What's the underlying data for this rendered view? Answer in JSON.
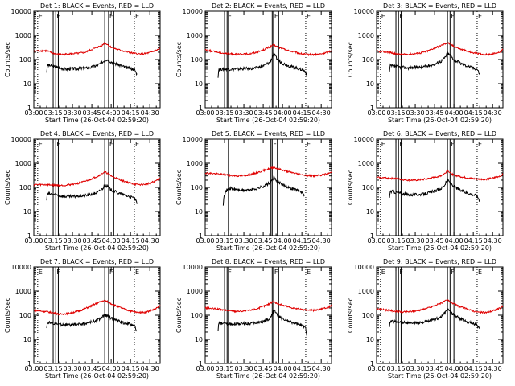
{
  "colors": {
    "events": "#000000",
    "lld": "#e00000",
    "axes": "#000000",
    "background": "#ffffff"
  },
  "shared": {
    "xlabel": "Start Time (26-Oct-04 02:59:20)",
    "ylabel": "Counts/sec",
    "x_ticks": [
      "03:00",
      "03:15",
      "03:30",
      "03:45",
      "04:00",
      "04:15",
      "04:30"
    ],
    "y_ticks": [
      "1",
      "10",
      "100",
      "1000",
      "10000"
    ],
    "y_scale": "log",
    "ylim": [
      1,
      10000
    ],
    "xlim_minutes_from_0300": [
      0,
      98
    ]
  },
  "chart_data": [
    {
      "type": "line",
      "title": "Det 1: BLACK = Events, RED = LLD",
      "markers": [
        {
          "label": "E",
          "x": 3,
          "style": "dotted"
        },
        {
          "label": "F",
          "x": 17,
          "style": "solid"
        },
        {
          "label": "F",
          "x": 58,
          "style": "solid"
        },
        {
          "label": "E",
          "x": 78,
          "style": "dotted"
        }
      ],
      "vlines_solid": [
        15,
        19,
        55,
        62
      ],
      "series": [
        {
          "name": "Events",
          "x": [
            10,
            10.5,
            17,
            20,
            25,
            30,
            35,
            40,
            45,
            50,
            53,
            55,
            57,
            60,
            65,
            70,
            75,
            78,
            80
          ],
          "y": [
            30,
            60,
            48,
            45,
            40,
            42,
            42,
            44,
            48,
            60,
            75,
            95,
            100,
            80,
            62,
            50,
            42,
            40,
            25
          ]
        },
        {
          "name": "LLD",
          "x": [
            0,
            5,
            10,
            15,
            20,
            25,
            30,
            35,
            40,
            45,
            50,
            53,
            55,
            57,
            60,
            65,
            70,
            75,
            80,
            85,
            90,
            95,
            98
          ],
          "y": [
            220,
            230,
            230,
            180,
            160,
            165,
            175,
            180,
            200,
            260,
            330,
            380,
            500,
            420,
            320,
            260,
            220,
            190,
            170,
            170,
            190,
            240,
            280
          ]
        }
      ]
    },
    {
      "type": "line",
      "title": "Det 2: BLACK = Events, RED = LLD",
      "markers": [
        {
          "label": "F",
          "x": 17,
          "style": "solid"
        },
        {
          "label": "F",
          "x": 53,
          "style": "solid"
        },
        {
          "label": "E",
          "x": 78,
          "style": "dotted"
        }
      ],
      "vlines_solid": [
        15,
        18,
        52,
        57
      ],
      "series": [
        {
          "name": "Events",
          "x": [
            10,
            10.5,
            17,
            20,
            25,
            30,
            35,
            40,
            45,
            50,
            52,
            53,
            55,
            57,
            60,
            65,
            70,
            75,
            78,
            79
          ],
          "y": [
            20,
            40,
            40,
            40,
            40,
            42,
            42,
            45,
            55,
            75,
            120,
            180,
            120,
            90,
            70,
            55,
            45,
            38,
            32,
            18
          ]
        },
        {
          "name": "LLD",
          "x": [
            0,
            5,
            10,
            15,
            20,
            25,
            30,
            35,
            40,
            45,
            50,
            53,
            55,
            60,
            65,
            70,
            75,
            80,
            85,
            90,
            95,
            98
          ],
          "y": [
            260,
            220,
            200,
            180,
            170,
            165,
            165,
            175,
            200,
            250,
            330,
            400,
            350,
            280,
            230,
            200,
            170,
            160,
            160,
            170,
            200,
            240
          ]
        }
      ]
    },
    {
      "type": "line",
      "title": "Det 3: BLACK = Events, RED = LLD",
      "markers": [
        {
          "label": "E",
          "x": 3,
          "style": "dotted"
        },
        {
          "label": "F",
          "x": 17,
          "style": "solid"
        },
        {
          "label": "F",
          "x": 57,
          "style": "solid"
        },
        {
          "label": "E",
          "x": 78,
          "style": "dotted"
        }
      ],
      "vlines_solid": [
        15,
        19,
        55,
        60
      ],
      "series": [
        {
          "name": "Events",
          "x": [
            10,
            10.5,
            17,
            20,
            25,
            30,
            35,
            40,
            45,
            50,
            53,
            55,
            57,
            60,
            65,
            70,
            75,
            78,
            80
          ],
          "y": [
            30,
            55,
            50,
            48,
            45,
            48,
            48,
            55,
            65,
            85,
            120,
            180,
            150,
            100,
            70,
            55,
            45,
            40,
            25
          ]
        },
        {
          "name": "LLD",
          "x": [
            0,
            5,
            10,
            15,
            20,
            25,
            30,
            35,
            40,
            45,
            50,
            53,
            55,
            57,
            60,
            65,
            70,
            75,
            80,
            85,
            90,
            95,
            98
          ],
          "y": [
            220,
            210,
            200,
            170,
            160,
            165,
            175,
            190,
            230,
            300,
            380,
            450,
            500,
            440,
            350,
            270,
            220,
            190,
            170,
            160,
            170,
            200,
            260
          ]
        }
      ]
    },
    {
      "type": "line",
      "title": "Det 4: BLACK = Events, RED = LLD",
      "markers": [
        {
          "label": "E",
          "x": 3,
          "style": "dotted"
        },
        {
          "label": "F",
          "x": 17,
          "style": "solid"
        },
        {
          "label": "F",
          "x": 58,
          "style": "solid"
        },
        {
          "label": "E",
          "x": 78,
          "style": "dotted"
        }
      ],
      "vlines_solid": [
        15,
        19,
        55,
        62
      ],
      "series": [
        {
          "name": "Events",
          "x": [
            10,
            10.5,
            17,
            20,
            25,
            30,
            35,
            40,
            45,
            50,
            53,
            55,
            57,
            60,
            65,
            70,
            75,
            78,
            80
          ],
          "y": [
            30,
            55,
            50,
            45,
            42,
            42,
            44,
            46,
            52,
            65,
            85,
            120,
            110,
            80,
            60,
            48,
            40,
            36,
            22
          ]
        },
        {
          "name": "LLD",
          "x": [
            0,
            5,
            10,
            15,
            20,
            25,
            30,
            35,
            40,
            45,
            50,
            53,
            55,
            57,
            60,
            65,
            70,
            75,
            80,
            85,
            90,
            95,
            98
          ],
          "y": [
            130,
            130,
            130,
            125,
            120,
            125,
            135,
            150,
            180,
            230,
            300,
            380,
            430,
            390,
            300,
            230,
            180,
            150,
            130,
            130,
            150,
            190,
            260
          ]
        }
      ]
    },
    {
      "type": "line",
      "title": "Det 5: BLACK = Events, RED = LLD",
      "markers": [
        {
          "label": "F",
          "x": 52,
          "style": "solid"
        },
        {
          "label": "E",
          "x": 78,
          "style": "dotted"
        }
      ],
      "vlines_solid": [
        18,
        51,
        56
      ],
      "series": [
        {
          "name": "Events",
          "x": [
            14,
            14.5,
            17,
            20,
            25,
            30,
            35,
            40,
            45,
            50,
            52,
            53,
            55,
            57,
            60,
            65,
            70,
            75,
            77
          ],
          "y": [
            20,
            50,
            80,
            90,
            80,
            75,
            80,
            90,
            110,
            150,
            200,
            260,
            200,
            160,
            130,
            100,
            80,
            65,
            40
          ]
        },
        {
          "name": "LLD",
          "x": [
            0,
            5,
            10,
            15,
            20,
            25,
            30,
            35,
            40,
            45,
            50,
            53,
            55,
            60,
            65,
            70,
            75,
            80,
            85,
            90,
            95,
            98
          ],
          "y": [
            400,
            380,
            360,
            340,
            310,
            300,
            310,
            340,
            400,
            500,
            600,
            680,
            620,
            520,
            440,
            380,
            340,
            310,
            300,
            320,
            370,
            420
          ]
        }
      ]
    },
    {
      "type": "line",
      "title": "Det 6: BLACK = Events, RED = LLD",
      "markers": [
        {
          "label": "E",
          "x": 3,
          "style": "dotted"
        },
        {
          "label": "F",
          "x": 17,
          "style": "solid"
        },
        {
          "label": "F",
          "x": 57,
          "style": "solid"
        },
        {
          "label": "E",
          "x": 78,
          "style": "dotted"
        }
      ],
      "vlines_solid": [
        15,
        19,
        55,
        60
      ],
      "series": [
        {
          "name": "Events",
          "x": [
            10,
            10.5,
            17,
            20,
            25,
            30,
            35,
            40,
            45,
            50,
            53,
            55,
            57,
            60,
            65,
            70,
            75,
            78,
            80
          ],
          "y": [
            35,
            70,
            60,
            55,
            50,
            50,
            52,
            58,
            70,
            90,
            130,
            200,
            160,
            110,
            75,
            60,
            50,
            45,
            28
          ]
        },
        {
          "name": "LLD",
          "x": [
            0,
            5,
            10,
            15,
            20,
            25,
            30,
            35,
            40,
            45,
            50,
            53,
            55,
            57,
            60,
            65,
            70,
            75,
            80,
            85,
            90,
            95,
            98
          ],
          "y": [
            260,
            250,
            240,
            230,
            210,
            200,
            200,
            210,
            230,
            260,
            310,
            380,
            520,
            400,
            320,
            280,
            250,
            230,
            220,
            220,
            240,
            290,
            340
          ]
        }
      ]
    },
    {
      "type": "line",
      "title": "Det 7: BLACK = Events, RED = LLD",
      "markers": [
        {
          "label": "E",
          "x": 3,
          "style": "dotted"
        },
        {
          "label": "F",
          "x": 17,
          "style": "solid"
        },
        {
          "label": "F",
          "x": 58,
          "style": "solid"
        },
        {
          "label": "E",
          "x": 78,
          "style": "dotted"
        }
      ],
      "vlines_solid": [
        15,
        19,
        55,
        62
      ],
      "series": [
        {
          "name": "Events",
          "x": [
            10,
            10.5,
            17,
            20,
            25,
            30,
            35,
            40,
            45,
            50,
            53,
            55,
            57,
            60,
            65,
            70,
            75,
            78,
            80
          ],
          "y": [
            30,
            50,
            45,
            42,
            40,
            40,
            42,
            45,
            52,
            65,
            85,
            100,
            95,
            75,
            58,
            48,
            42,
            38,
            20
          ]
        },
        {
          "name": "LLD",
          "x": [
            0,
            5,
            10,
            15,
            20,
            25,
            30,
            35,
            40,
            45,
            50,
            53,
            55,
            57,
            60,
            65,
            70,
            75,
            80,
            85,
            90,
            95,
            98
          ],
          "y": [
            160,
            150,
            140,
            125,
            110,
            115,
            130,
            150,
            190,
            250,
            330,
            380,
            400,
            370,
            300,
            230,
            180,
            150,
            130,
            130,
            150,
            190,
            250
          ]
        }
      ]
    },
    {
      "type": "line",
      "title": "Det 8: BLACK = Events, RED = LLD",
      "markers": [
        {
          "label": "F",
          "x": 17,
          "style": "solid"
        },
        {
          "label": "F",
          "x": 53,
          "style": "solid"
        },
        {
          "label": "E",
          "x": 78,
          "style": "dotted"
        }
      ],
      "vlines_solid": [
        15,
        18,
        52,
        57
      ],
      "series": [
        {
          "name": "Events",
          "x": [
            10,
            10.5,
            17,
            20,
            25,
            30,
            35,
            40,
            45,
            50,
            52,
            53,
            55,
            57,
            60,
            65,
            70,
            75,
            78,
            79
          ],
          "y": [
            25,
            45,
            45,
            45,
            44,
            45,
            45,
            48,
            55,
            70,
            110,
            170,
            120,
            90,
            70,
            55,
            45,
            38,
            30,
            12
          ]
        },
        {
          "name": "LLD",
          "x": [
            0,
            5,
            10,
            15,
            20,
            25,
            30,
            35,
            40,
            45,
            50,
            53,
            55,
            60,
            65,
            70,
            75,
            80,
            85,
            90,
            95,
            98
          ],
          "y": [
            200,
            190,
            180,
            160,
            150,
            145,
            150,
            160,
            185,
            230,
            300,
            380,
            320,
            260,
            220,
            190,
            170,
            160,
            160,
            180,
            210,
            250
          ]
        }
      ]
    },
    {
      "type": "line",
      "title": "Det 9: BLACK = Events, RED = LLD",
      "markers": [
        {
          "label": "E",
          "x": 3,
          "style": "dotted"
        },
        {
          "label": "F",
          "x": 17,
          "style": "solid"
        },
        {
          "label": "F",
          "x": 57,
          "style": "solid"
        },
        {
          "label": "E",
          "x": 78,
          "style": "dotted"
        }
      ],
      "vlines_solid": [
        15,
        19,
        55,
        60
      ],
      "series": [
        {
          "name": "Events",
          "x": [
            10,
            10.5,
            17,
            20,
            25,
            30,
            35,
            40,
            45,
            50,
            53,
            55,
            57,
            60,
            65,
            70,
            75,
            78,
            80
          ],
          "y": [
            30,
            55,
            55,
            50,
            48,
            48,
            50,
            55,
            65,
            85,
            120,
            180,
            140,
            100,
            70,
            55,
            45,
            40,
            25
          ]
        },
        {
          "name": "LLD",
          "x": [
            0,
            5,
            10,
            15,
            20,
            25,
            30,
            35,
            40,
            45,
            50,
            53,
            55,
            57,
            60,
            65,
            70,
            75,
            80,
            85,
            90,
            95,
            98
          ],
          "y": [
            180,
            170,
            160,
            145,
            135,
            140,
            150,
            170,
            200,
            250,
            320,
            380,
            420,
            370,
            290,
            220,
            180,
            150,
            130,
            130,
            150,
            190,
            240
          ]
        }
      ]
    }
  ]
}
